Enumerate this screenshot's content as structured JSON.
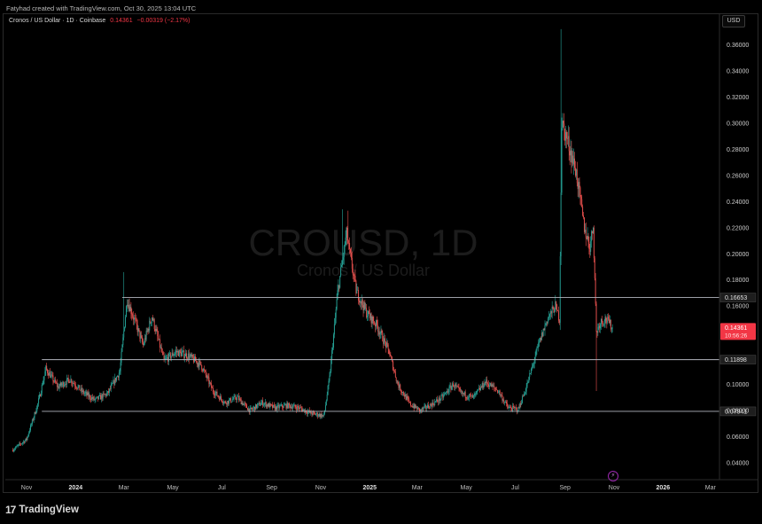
{
  "header": {
    "credit": "Fatyhad created with TradingView.com, Oct 30, 2025 13:04 UTC"
  },
  "legend": {
    "symbol": "Cronos / US Dollar · 1D · Coinbase",
    "price": "0.14361",
    "change": "−0.00319 (−2.17%)"
  },
  "currency": "USD",
  "watermark": {
    "ticker": "CROUSD, 1D",
    "name": "Cronos / US Dollar"
  },
  "footer": {
    "logo_mark": "17",
    "brand": "TradingView"
  },
  "colors": {
    "up": "#26a69a",
    "down": "#ef5350",
    "price_label": "#f23645",
    "level_line": "#b2b5be",
    "flash": "#9c27b0"
  },
  "chart_data": {
    "type": "candlestick",
    "title": "",
    "ylim": [
      0.03,
      0.37
    ],
    "y_ticks": [
      "0.04000",
      "0.06000",
      "0.08000",
      "0.10000",
      "0.12000",
      "0.14000",
      "0.16000",
      "0.18000",
      "0.20000",
      "0.22000",
      "0.24000",
      "0.26000",
      "0.28000",
      "0.30000",
      "0.32000",
      "0.34000",
      "0.36000"
    ],
    "x_ticks": [
      "Nov",
      "2024",
      "Mar",
      "May",
      "Jul",
      "Sep",
      "Nov",
      "2025",
      "Mar",
      "May",
      "Jul",
      "Sep",
      "Nov",
      "2026",
      "Mar"
    ],
    "levels": [
      {
        "value": 0.16653,
        "label": "0.16653",
        "start": "2024-02-28"
      },
      {
        "value": 0.11898,
        "label": "0.11898",
        "start": "2023-11-20"
      },
      {
        "value": 0.07941,
        "label": "0.07941",
        "start": "2023-11-20"
      }
    ],
    "last_price": {
      "value": 0.14361,
      "label": "0.14361",
      "countdown": "10:56:26"
    },
    "price_path": [
      [
        "2023-10-15",
        0.05
      ],
      [
        "2023-11-01",
        0.058
      ],
      [
        "2023-11-15",
        0.085
      ],
      [
        "2023-11-25",
        0.112
      ],
      [
        "2023-12-10",
        0.098
      ],
      [
        "2023-12-25",
        0.104
      ],
      [
        "2024-01-10",
        0.094
      ],
      [
        "2024-01-25",
        0.088
      ],
      [
        "2024-02-10",
        0.093
      ],
      [
        "2024-02-25",
        0.11
      ],
      [
        "2024-03-05",
        0.165
      ],
      [
        "2024-03-15",
        0.148
      ],
      [
        "2024-03-25",
        0.13
      ],
      [
        "2024-04-05",
        0.152
      ],
      [
        "2024-04-20",
        0.118
      ],
      [
        "2024-05-05",
        0.125
      ],
      [
        "2024-05-20",
        0.122
      ],
      [
        "2024-06-05",
        0.115
      ],
      [
        "2024-06-20",
        0.095
      ],
      [
        "2024-07-05",
        0.086
      ],
      [
        "2024-07-20",
        0.09
      ],
      [
        "2024-08-05",
        0.08
      ],
      [
        "2024-08-20",
        0.086
      ],
      [
        "2024-09-05",
        0.082
      ],
      [
        "2024-09-20",
        0.084
      ],
      [
        "2024-10-05",
        0.082
      ],
      [
        "2024-10-20",
        0.078
      ],
      [
        "2024-11-05",
        0.076
      ],
      [
        "2024-11-12",
        0.105
      ],
      [
        "2024-11-22",
        0.17
      ],
      [
        "2024-12-03",
        0.215
      ],
      [
        "2024-12-15",
        0.172
      ],
      [
        "2024-12-28",
        0.155
      ],
      [
        "2025-01-10",
        0.145
      ],
      [
        "2025-01-25",
        0.125
      ],
      [
        "2025-02-05",
        0.1
      ],
      [
        "2025-02-20",
        0.085
      ],
      [
        "2025-03-05",
        0.08
      ],
      [
        "2025-03-20",
        0.085
      ],
      [
        "2025-04-01",
        0.09
      ],
      [
        "2025-04-15",
        0.1
      ],
      [
        "2025-04-25",
        0.093
      ],
      [
        "2025-05-10",
        0.09
      ],
      [
        "2025-05-25",
        0.102
      ],
      [
        "2025-06-10",
        0.095
      ],
      [
        "2025-06-22",
        0.082
      ],
      [
        "2025-07-05",
        0.081
      ],
      [
        "2025-07-15",
        0.098
      ],
      [
        "2025-07-30",
        0.13
      ],
      [
        "2025-08-10",
        0.15
      ],
      [
        "2025-08-20",
        0.16
      ],
      [
        "2025-08-25",
        0.15
      ],
      [
        "2025-08-28",
        0.3
      ],
      [
        "2025-09-05",
        0.285
      ],
      [
        "2025-09-15",
        0.262
      ],
      [
        "2025-09-25",
        0.22
      ],
      [
        "2025-10-02",
        0.205
      ],
      [
        "2025-10-06",
        0.222
      ],
      [
        "2025-10-10",
        0.14
      ],
      [
        "2025-10-15",
        0.148
      ],
      [
        "2025-10-22",
        0.15
      ],
      [
        "2025-10-30",
        0.14361
      ]
    ],
    "spikes": [
      {
        "date": "2024-03-01",
        "high": 0.186
      },
      {
        "date": "2024-11-28",
        "high": 0.234
      },
      {
        "date": "2024-12-05",
        "high": 0.233
      },
      {
        "date": "2025-08-27",
        "high": 0.372
      },
      {
        "date": "2025-10-10",
        "low": 0.095
      }
    ]
  }
}
